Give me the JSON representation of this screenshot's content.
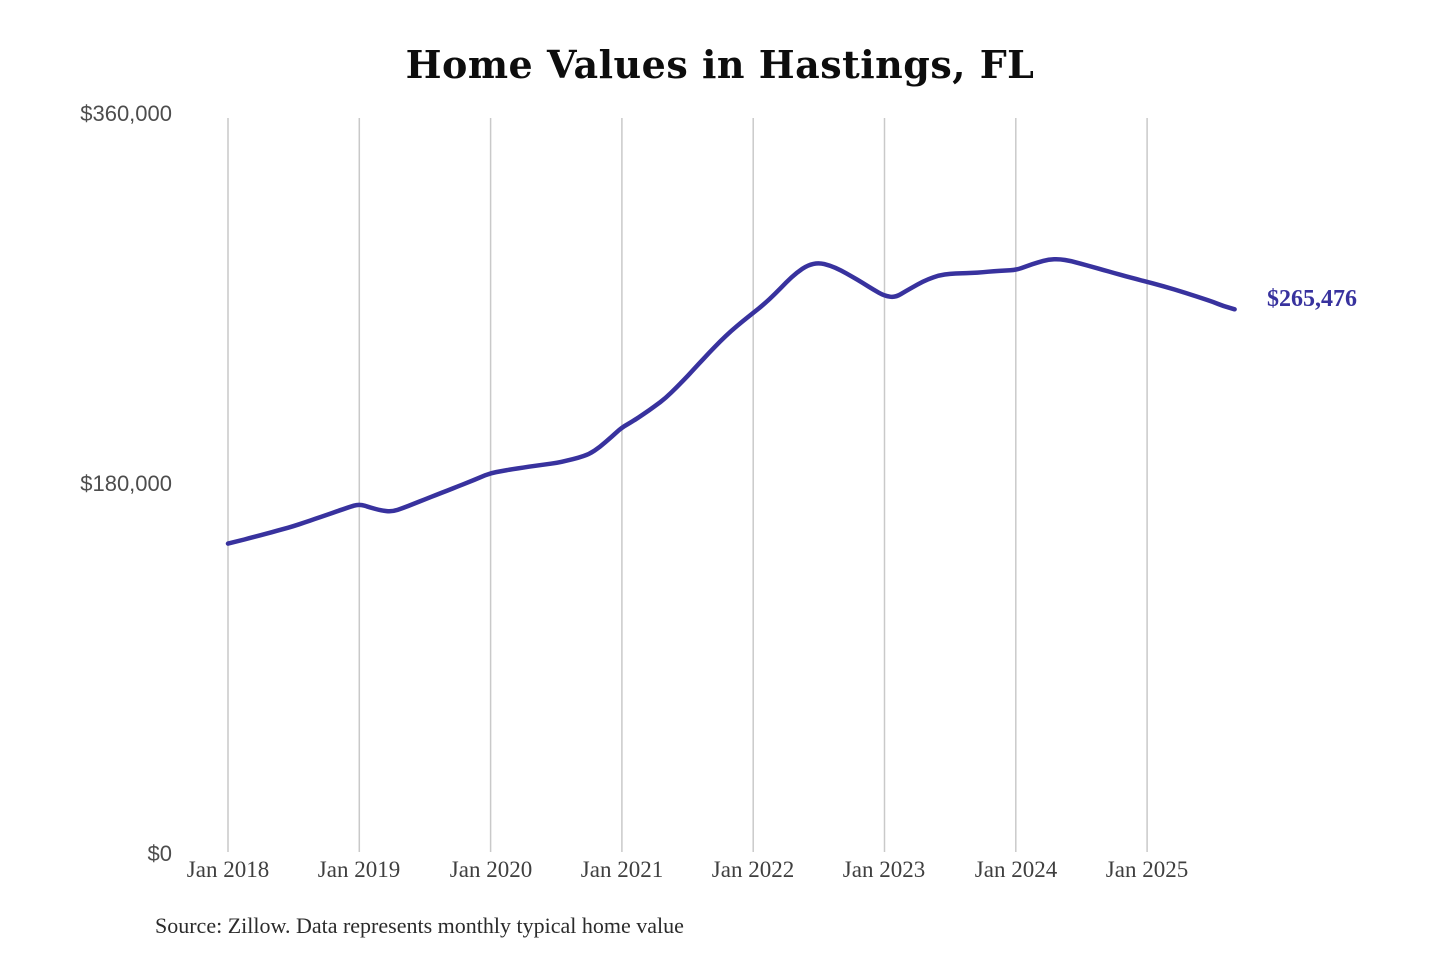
{
  "page": {
    "background": "#ffffff"
  },
  "chart_data": {
    "type": "line",
    "title": "Home Values in Hastings, FL",
    "xlabel": "",
    "ylabel": "",
    "ylim": [
      0,
      360000
    ],
    "grid": "vertical-only",
    "legend": "none",
    "x_freq": "monthly",
    "months": [
      "2018-01",
      "2018-02",
      "2018-03",
      "2018-04",
      "2018-05",
      "2018-06",
      "2018-07",
      "2018-08",
      "2018-09",
      "2018-10",
      "2018-11",
      "2018-12",
      "2019-01",
      "2019-02",
      "2019-03",
      "2019-04",
      "2019-05",
      "2019-06",
      "2019-07",
      "2019-08",
      "2019-09",
      "2019-10",
      "2019-11",
      "2019-12",
      "2020-01",
      "2020-02",
      "2020-03",
      "2020-04",
      "2020-05",
      "2020-06",
      "2020-07",
      "2020-08",
      "2020-09",
      "2020-10",
      "2020-11",
      "2020-12",
      "2021-01",
      "2021-02",
      "2021-03",
      "2021-04",
      "2021-05",
      "2021-06",
      "2021-07",
      "2021-08",
      "2021-09",
      "2021-10",
      "2021-11",
      "2021-12",
      "2022-01",
      "2022-02",
      "2022-03",
      "2022-04",
      "2022-05",
      "2022-06",
      "2022-07",
      "2022-08",
      "2022-09",
      "2022-10",
      "2022-11",
      "2022-12",
      "2023-01",
      "2023-02",
      "2023-03",
      "2023-04",
      "2023-05",
      "2023-06",
      "2023-07",
      "2023-08",
      "2023-09",
      "2023-10",
      "2023-11",
      "2023-12",
      "2024-01",
      "2024-02",
      "2024-03",
      "2024-04",
      "2024-05",
      "2024-06",
      "2024-07",
      "2024-08",
      "2024-09",
      "2024-10",
      "2024-11",
      "2024-12",
      "2025-01",
      "2025-02",
      "2025-03",
      "2025-04",
      "2025-05",
      "2025-06",
      "2025-07",
      "2025-08",
      "2025-09"
    ],
    "series": [
      {
        "name": "Typical home value",
        "values": [
          151500,
          152800,
          154200,
          155600,
          157000,
          158500,
          160000,
          161800,
          163600,
          165400,
          167300,
          169100,
          170800,
          169000,
          167600,
          167000,
          168800,
          170900,
          173000,
          175100,
          177200,
          179300,
          181400,
          183600,
          185800,
          186800,
          187700,
          188500,
          189300,
          190000,
          190700,
          191900,
          193200,
          195000,
          198500,
          203200,
          208000,
          211000,
          214600,
          218300,
          222300,
          227500,
          233000,
          238800,
          244500,
          250000,
          255000,
          259500,
          263700,
          268000,
          273000,
          278500,
          283500,
          287000,
          288100,
          286800,
          284500,
          281500,
          278300,
          275000,
          272000,
          271200,
          274500,
          277500,
          280200,
          282000,
          282800,
          283000,
          283200,
          283500,
          284000,
          284300,
          284600,
          286400,
          288300,
          289700,
          289900,
          289000,
          287600,
          286100,
          284600,
          283100,
          281600,
          280200,
          278800,
          277400,
          275900,
          274300,
          272600,
          270900,
          269100,
          267000,
          265476
        ]
      }
    ],
    "x_tick_labels": [
      "Jan 2018",
      "Jan 2019",
      "Jan 2020",
      "Jan 2021",
      "Jan 2022",
      "Jan 2023",
      "Jan 2024",
      "Jan 2025"
    ],
    "y_tick_labels": [
      "$360,000",
      "$180,000",
      "$0"
    ],
    "end_label": "$265,476",
    "last_value": 265476,
    "colors": {
      "line": "#38329e",
      "grid": "#c9c9c9",
      "title": "#0d0d0d",
      "y_axis_text": "#4d4d4d",
      "x_axis_text": "#3f3f3f",
      "source_text": "#2b2b2b",
      "background": "#ffffff"
    },
    "source_note": "Source: Zillow. Data represents monthly typical home value"
  }
}
